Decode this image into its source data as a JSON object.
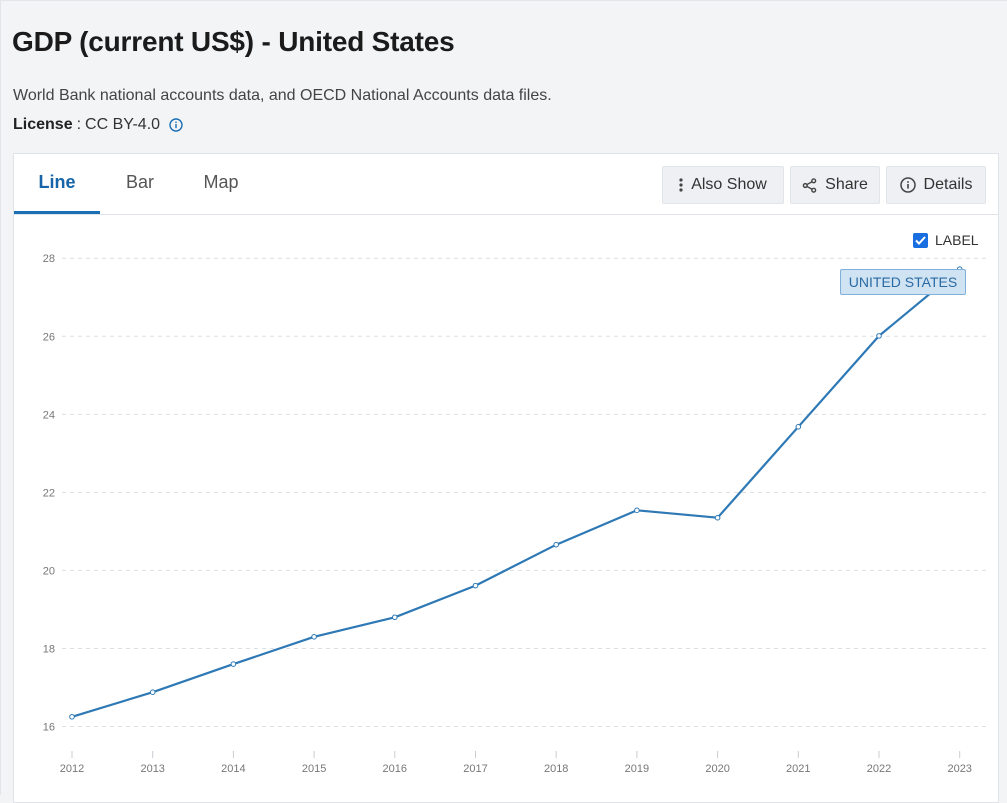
{
  "header": {
    "title": "GDP (current US$) - United States",
    "subtitle": "World Bank national accounts data, and OECD National Accounts data files.",
    "license_key": "License",
    "license_value": "CC BY-4.0"
  },
  "tabs": [
    {
      "label": "Line",
      "active": true
    },
    {
      "label": "Bar",
      "active": false
    },
    {
      "label": "Map",
      "active": false
    }
  ],
  "toolbar": {
    "also_show": "Also Show",
    "share": "Share",
    "details": "Details"
  },
  "chart_controls": {
    "label_checkbox": "LABEL",
    "label_checked": true,
    "series_tag": "UNITED STATES"
  },
  "colors": {
    "accent": "#1a6fb5",
    "line": "#2e79b5",
    "checkbox": "#1a6fe0"
  },
  "chart_data": {
    "type": "line",
    "title": "",
    "xlabel": "",
    "ylabel": "",
    "x": [
      "2012",
      "2013",
      "2014",
      "2015",
      "2016",
      "2017",
      "2018",
      "2019",
      "2020",
      "2021",
      "2022",
      "2023"
    ],
    "series": [
      {
        "name": "UNITED STATES",
        "values": [
          16.25,
          16.88,
          17.6,
          18.3,
          18.8,
          19.61,
          20.66,
          21.54,
          21.35,
          23.68,
          26.01,
          27.72
        ]
      }
    ],
    "yticks": [
      16,
      18,
      20,
      22,
      24,
      26,
      28
    ],
    "ylim": [
      15.45,
      28.3
    ],
    "grid": true,
    "grid_style": "dashed-horizontal",
    "legend": "none"
  }
}
